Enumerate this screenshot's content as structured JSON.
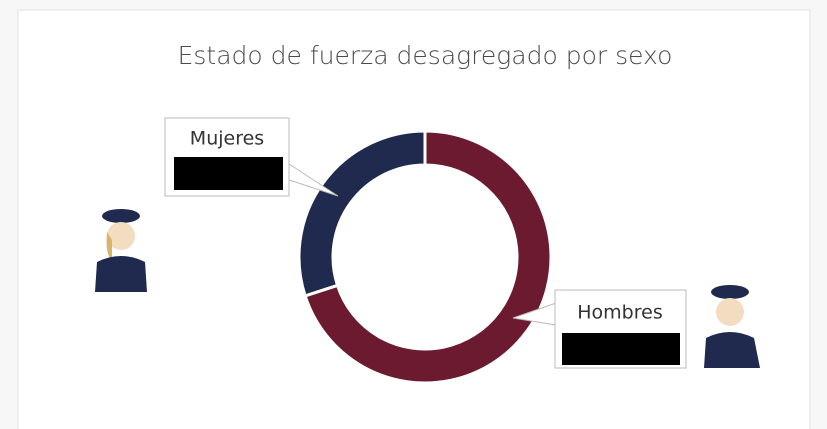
{
  "chart_data": {
    "type": "pie",
    "title": "Estado de fuerza desagregado por sexo",
    "categories": [
      "Mujeres",
      "Hombres"
    ],
    "values": [
      30,
      70
    ],
    "colors": [
      "#1f2a4e",
      "#6b1a30"
    ],
    "donut": true
  }
}
